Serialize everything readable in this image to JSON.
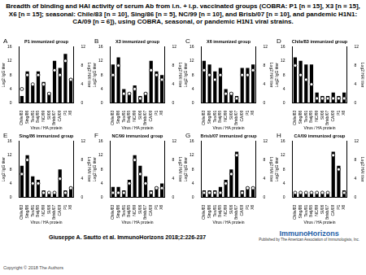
{
  "header": {
    "title": "Breadth of binding and HAI activity of serum Ab from i.n. + i.p. vaccinated groups (COBRA: P1 [n = 15], X3 [n = 15], X6 [n = 15]; seasonal: Chile/83 [n = 10], Sing/86 [n = 5], NC/99 [n = 10], and Brisb/07 [n = 10], and pandemic H1N1: CA/09 [n = 6]), using COBRA, seasonal, or pandemic H1N1 viral strains."
  },
  "footer": {
    "citation": "Giuseppe A. Sautto et al. ImmunoHorizons 2018;2:226-237",
    "copyright": "Copyright © 2018 The Authors",
    "logo": "ImmunoHorizons",
    "publisher": "Published by The American Association of Immunologists, Inc."
  },
  "chart_data": [
    {
      "type": "bar",
      "annotations": [
        "A"
      ],
      "title": "P1 immunized group",
      "x_label": "Virus / HA protein",
      "y_label": "Log2 IgG titer",
      "y2_label": "Log2 HAI titer",
      "categories": [
        "Chile/83",
        "Sing/86",
        "Tex/91",
        "Beij/95",
        "NC/99",
        "SI/06",
        "Brisb/07",
        "CA/09",
        "P1",
        "X6"
      ],
      "series": [
        {
          "type": "bar",
          "color": "#000000",
          "values": [
            2,
            9,
            5,
            9,
            6,
            3,
            12,
            10,
            14,
            7
          ]
        },
        {
          "type": "scatter",
          "marker": "circle",
          "axis": "y2",
          "color": "#000000",
          "values": [
            3,
            6,
            4,
            6,
            4,
            2,
            7,
            6,
            9,
            5
          ]
        }
      ],
      "ylim": [
        0,
        16
      ],
      "yticks": [
        0,
        4,
        8,
        12,
        16
      ],
      "y2lim": [
        0,
        12
      ],
      "y2ticks": [
        0,
        4,
        8,
        12
      ],
      "grid": false
    },
    {
      "type": "bar",
      "annotations": [
        "B"
      ],
      "title": "X3 immunized group",
      "x_label": "Virus / HA protein",
      "y_label": "Log2 IgG titer",
      "y2_label": "Log2 HAI titer",
      "categories": [
        "Chile/83",
        "Sing/86",
        "Tex/91",
        "Beij/95",
        "NC/99",
        "SI/06",
        "Brisb/07",
        "CA/09",
        "P1",
        "X6"
      ],
      "series": [
        {
          "type": "bar",
          "color": "#000000",
          "values": [
            11,
            13,
            4,
            3,
            5,
            2,
            3,
            12,
            9,
            8
          ]
        },
        {
          "type": "scatter",
          "marker": "circle",
          "axis": "y2",
          "color": "#000000",
          "values": [
            6,
            8,
            2,
            2,
            3,
            1,
            2,
            7,
            6,
            5
          ]
        }
      ],
      "ylim": [
        0,
        16
      ],
      "yticks": [
        0,
        4,
        8,
        12,
        16
      ],
      "y2lim": [
        0,
        12
      ],
      "y2ticks": [
        0,
        4,
        8,
        12
      ],
      "grid": false
    },
    {
      "type": "bar",
      "annotations": [
        "C"
      ],
      "title": "X6 immunized group",
      "x_label": "Virus / HA protein",
      "y_label": "Log2 IgG titer",
      "y2_label": "Log2 HAI titer",
      "categories": [
        "Chile/83",
        "Sing/86",
        "Tex/91",
        "Beij/95",
        "NC/99",
        "SI/06",
        "Brisb/07",
        "CA/09",
        "P1",
        "X6"
      ],
      "series": [
        {
          "type": "bar",
          "color": "#000000",
          "values": [
            12,
            11,
            9,
            10,
            4,
            3,
            2,
            10,
            10,
            11
          ]
        },
        {
          "type": "scatter",
          "marker": "circle",
          "axis": "y2",
          "color": "#000000",
          "values": [
            7,
            6,
            5,
            6,
            2,
            2,
            1,
            6,
            6,
            7
          ]
        }
      ],
      "ylim": [
        0,
        16
      ],
      "yticks": [
        0,
        4,
        8,
        12,
        16
      ],
      "y2lim": [
        0,
        12
      ],
      "y2ticks": [
        0,
        4,
        8,
        12
      ],
      "grid": false
    },
    {
      "type": "bar",
      "annotations": [
        "D"
      ],
      "title": "Chile/83 immunized group",
      "x_label": "Virus / HA protein",
      "y_label": "Log2 IgG titer",
      "y2_label": "Log2 HAI titer",
      "categories": [
        "Chile/83",
        "Sing/86",
        "Tex/91",
        "Beij/95",
        "NC/99",
        "SI/06",
        "Brisb/07",
        "CA/09",
        "P1",
        "X6"
      ],
      "series": [
        {
          "type": "bar",
          "color": "#000000",
          "values": [
            13,
            12,
            11,
            11,
            3,
            2,
            2,
            3,
            2,
            3
          ]
        },
        {
          "type": "scatter",
          "marker": "circle",
          "axis": "y2",
          "color": "#000000",
          "values": [
            8,
            6,
            5,
            4,
            1,
            1,
            1,
            1,
            1,
            1
          ]
        }
      ],
      "ylim": [
        0,
        16
      ],
      "yticks": [
        0,
        4,
        8,
        12,
        16
      ],
      "y2lim": [
        0,
        12
      ],
      "y2ticks": [
        0,
        4,
        8,
        12
      ],
      "grid": false
    },
    {
      "type": "bar",
      "annotations": [
        "E"
      ],
      "title": "Sing/86 immunized group",
      "x_label": "Virus / HA protein",
      "y_label": "Log2 IgG titer",
      "y2_label": "Log2 HAI titer",
      "categories": [
        "Chile/83",
        "Sing/86",
        "Tex/91",
        "Beij/95",
        "NC/99",
        "SI/06",
        "Brisb/07",
        "CA/09",
        "P1",
        "X6"
      ],
      "series": [
        {
          "type": "bar",
          "color": "#000000",
          "values": [
            9,
            12,
            6,
            5,
            2,
            1,
            1,
            8,
            2,
            3
          ]
        },
        {
          "type": "scatter",
          "marker": "circle",
          "axis": "y2",
          "color": "#000000",
          "values": [
            5,
            8,
            3,
            3,
            1,
            1,
            1,
            4,
            1,
            2
          ]
        }
      ],
      "ylim": [
        0,
        16
      ],
      "yticks": [
        0,
        4,
        8,
        12,
        16
      ],
      "y2lim": [
        0,
        12
      ],
      "y2ticks": [
        0,
        4,
        8,
        12
      ],
      "grid": false
    },
    {
      "type": "bar",
      "annotations": [
        "F"
      ],
      "title": "NC/99 immunized group",
      "x_label": "Virus / HA protein",
      "y_label": "Log2 IgG titer",
      "y2_label": "Log2 HAI titer",
      "categories": [
        "Chile/83",
        "Sing/86",
        "Tex/91",
        "Beij/95",
        "NC/99",
        "SI/06",
        "Brisb/07",
        "CA/09",
        "P1",
        "X6"
      ],
      "series": [
        {
          "type": "bar",
          "color": "#000000",
          "values": [
            3,
            3,
            2,
            5,
            12,
            9,
            6,
            2,
            3,
            4
          ]
        },
        {
          "type": "scatter",
          "marker": "circle",
          "axis": "y2",
          "color": "#000000",
          "values": [
            1,
            1,
            1,
            3,
            8,
            5,
            3,
            1,
            2,
            2
          ]
        }
      ],
      "ylim": [
        0,
        16
      ],
      "yticks": [
        0,
        4,
        8,
        12,
        16
      ],
      "y2lim": [
        0,
        12
      ],
      "y2ticks": [
        0,
        4,
        8,
        12
      ],
      "grid": false
    },
    {
      "type": "bar",
      "annotations": [
        "G"
      ],
      "title": "Brisb/07 immunized group",
      "x_label": "Virus / HA protein",
      "y_label": "Log2 IgG titer",
      "y2_label": "Log2 HAI titer",
      "categories": [
        "Chile/83",
        "Sing/86",
        "Tex/91",
        "Beij/95",
        "NC/99",
        "SI/06",
        "Brisb/07",
        "CA/09",
        "P1",
        "X6"
      ],
      "series": [
        {
          "type": "bar",
          "color": "#000000",
          "values": [
            2,
            2,
            2,
            3,
            5,
            8,
            13,
            2,
            3,
            3
          ]
        },
        {
          "type": "scatter",
          "marker": "circle",
          "axis": "y2",
          "color": "#000000",
          "values": [
            1,
            1,
            1,
            1,
            3,
            5,
            9,
            1,
            2,
            2
          ]
        }
      ],
      "ylim": [
        0,
        16
      ],
      "yticks": [
        0,
        4,
        8,
        12,
        16
      ],
      "y2lim": [
        0,
        12
      ],
      "y2ticks": [
        0,
        4,
        8,
        12
      ],
      "grid": false
    },
    {
      "type": "bar",
      "annotations": [
        "H"
      ],
      "title": "CA/09 immunized group",
      "x_label": "Virus / HA protein",
      "y_label": "Log2 IgG titer",
      "y2_label": "Log2 HAI titer",
      "categories": [
        "Chile/83",
        "Sing/86",
        "Tex/91",
        "Beij/95",
        "NC/99",
        "SI/06",
        "Brisb/07",
        "CA/09",
        "P1",
        "X6"
      ],
      "series": [
        {
          "type": "bar",
          "color": "#000000",
          "values": [
            1,
            1,
            1,
            1,
            1,
            1,
            1,
            13,
            9,
            2
          ]
        },
        {
          "type": "scatter",
          "marker": "circle",
          "axis": "y2",
          "color": "#000000",
          "values": [
            1,
            1,
            1,
            1,
            1,
            1,
            1,
            9,
            6,
            1
          ]
        }
      ],
      "ylim": [
        0,
        16
      ],
      "yticks": [
        0,
        4,
        8,
        12,
        16
      ],
      "y2lim": [
        0,
        12
      ],
      "y2ticks": [
        0,
        4,
        8,
        12
      ],
      "grid": false
    }
  ]
}
